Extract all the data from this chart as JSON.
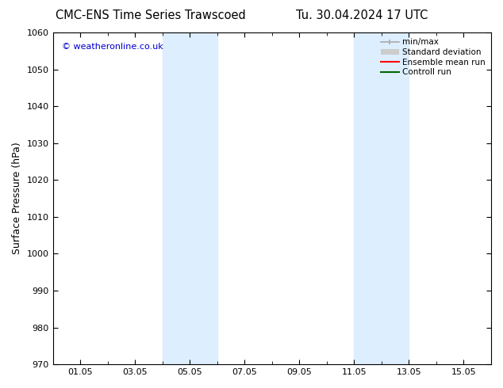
{
  "title_left": "CMC-ENS Time Series Trawscoed",
  "title_right": "Tu. 30.04.2024 17 UTC",
  "ylabel": "Surface Pressure (hPa)",
  "ylim": [
    970,
    1060
  ],
  "yticks": [
    970,
    980,
    990,
    1000,
    1010,
    1020,
    1030,
    1040,
    1050,
    1060
  ],
  "xtick_labels": [
    "01.05",
    "03.05",
    "05.05",
    "07.05",
    "09.05",
    "11.05",
    "13.05",
    "15.05"
  ],
  "xtick_positions": [
    1,
    3,
    5,
    7,
    9,
    11,
    13,
    15
  ],
  "xmin": 0,
  "xmax": 16,
  "shaded_bands": [
    {
      "xmin": 4,
      "xmax": 6
    },
    {
      "xmin": 11,
      "xmax": 13
    }
  ],
  "band_color": "#ddeeff",
  "background_color": "#ffffff",
  "watermark_text": "© weatheronline.co.uk",
  "watermark_color": "#0000cc",
  "legend_entries": [
    {
      "label": "min/max",
      "color": "#aaaaaa"
    },
    {
      "label": "Standard deviation",
      "color": "#cccccc"
    },
    {
      "label": "Ensemble mean run",
      "color": "#ff0000"
    },
    {
      "label": "Controll run",
      "color": "#006600"
    }
  ],
  "title_fontsize": 10.5,
  "ylabel_fontsize": 9,
  "tick_fontsize": 8,
  "legend_fontsize": 7.5
}
